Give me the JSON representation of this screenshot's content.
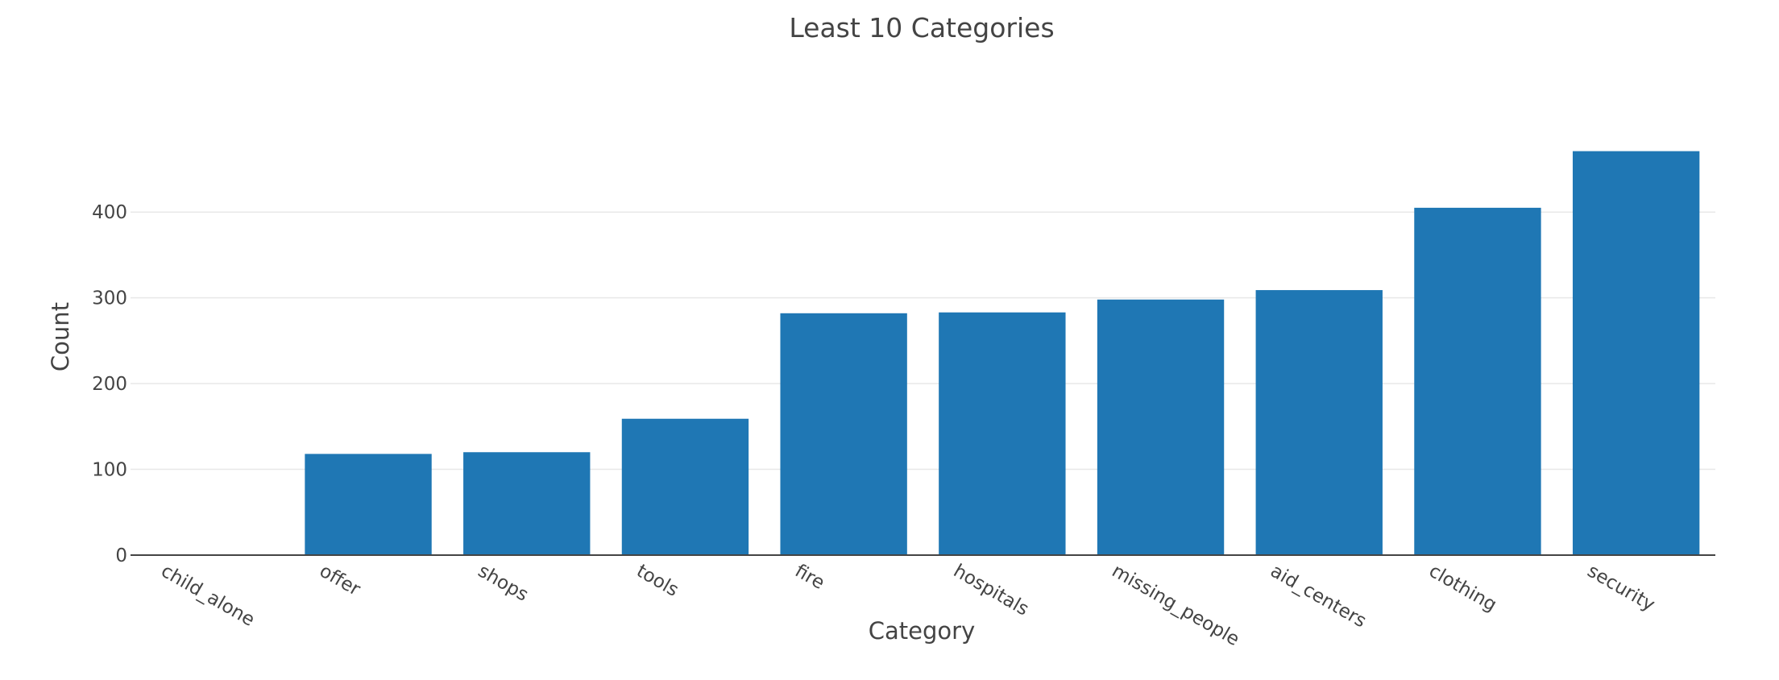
{
  "chart_data": {
    "type": "bar",
    "title": "Least 10 Categories",
    "xlabel": "Category",
    "ylabel": "Count",
    "categories": [
      "child_alone",
      "offer",
      "shops",
      "tools",
      "fire",
      "hospitals",
      "missing_people",
      "aid_centers",
      "clothing",
      "security"
    ],
    "values": [
      0,
      118,
      120,
      159,
      282,
      283,
      298,
      309,
      405,
      471
    ],
    "ylim": [
      0,
      496
    ],
    "yticks": [
      0,
      100,
      200,
      300,
      400
    ],
    "grid": true,
    "color": "#1f77b4"
  }
}
